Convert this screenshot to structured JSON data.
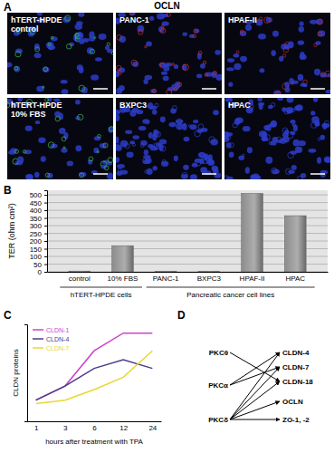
{
  "panel_a": {
    "label": "A",
    "title": "OCLN",
    "images": [
      {
        "lines": [
          "hTERT-HPDE",
          "control"
        ]
      },
      {
        "lines": [
          "PANC-1"
        ]
      },
      {
        "lines": [
          "HPAF-II"
        ]
      },
      {
        "lines": [
          "hTERT-HPDE",
          "10% FBS"
        ]
      },
      {
        "lines": [
          "BXPC3"
        ]
      },
      {
        "lines": [
          "HPAC"
        ]
      }
    ]
  },
  "chart_data": [
    {
      "type": "bar",
      "annotations": [
        "B"
      ],
      "ylabel": "TER (ohm cm²)",
      "categories": [
        "control",
        "10% FBS",
        "PANC-1",
        "BXPC3",
        "HPAF-II",
        "HPAC"
      ],
      "values": [
        5,
        170,
        3,
        3,
        510,
        365
      ],
      "color": "#8c8c8c",
      "ylim": [
        0,
        530
      ],
      "yticks": [
        0,
        50,
        100,
        150,
        200,
        250,
        300,
        350,
        400,
        450,
        500
      ],
      "grid": true,
      "groups": [
        {
          "label": "hTERT-HPDE cells",
          "members": [
            "control",
            "10% FBS"
          ]
        },
        {
          "label": "Pancreatic cancer cell lines",
          "members": [
            "PANC-1",
            "BXPC3",
            "HPAF-II",
            "HPAC"
          ]
        }
      ]
    },
    {
      "type": "line",
      "annotations": [
        "C"
      ],
      "xlabel": "hours after treatment with TPA",
      "ylabel": "CLDN proteins",
      "categories": [
        "1",
        "3",
        "6",
        "12",
        "24"
      ],
      "series": [
        {
          "name": "CLDN-1",
          "color": "#cc44cc",
          "values": [
            1.2,
            2,
            4,
            5,
            5
          ]
        },
        {
          "name": "CLDN-4",
          "color": "#4b3a8c",
          "values": [
            1.2,
            2,
            3,
            3.5,
            3
          ]
        },
        {
          "name": "CLDN-7",
          "color": "#e8d830",
          "values": [
            1,
            1.2,
            1.8,
            2.5,
            4
          ]
        }
      ],
      "ylim": [
        0,
        5.5
      ],
      "yticks": [],
      "tick_labels": "x",
      "legend": "upper left",
      "grid": false
    }
  ],
  "diagram": {
    "label": "D",
    "nodes": [
      {
        "label": "PKCθ"
      },
      {
        "label": "PKCα"
      },
      {
        "label": "PKCδ"
      },
      {
        "label": "CLDN-4"
      },
      {
        "label": "CLDN-7"
      },
      {
        "label": "CLDN-18"
      },
      {
        "label": "OCLN"
      },
      {
        "label": "ZO-1, -2"
      }
    ],
    "edges": [
      {
        "from": 0,
        "to": 5
      },
      {
        "from": 1,
        "to": 3
      },
      {
        "from": 1,
        "to": 4
      },
      {
        "from": 2,
        "to": 3
      },
      {
        "from": 2,
        "to": 4
      },
      {
        "from": 2,
        "to": 5
      },
      {
        "from": 2,
        "to": 6
      },
      {
        "from": 2,
        "to": 7
      }
    ]
  }
}
